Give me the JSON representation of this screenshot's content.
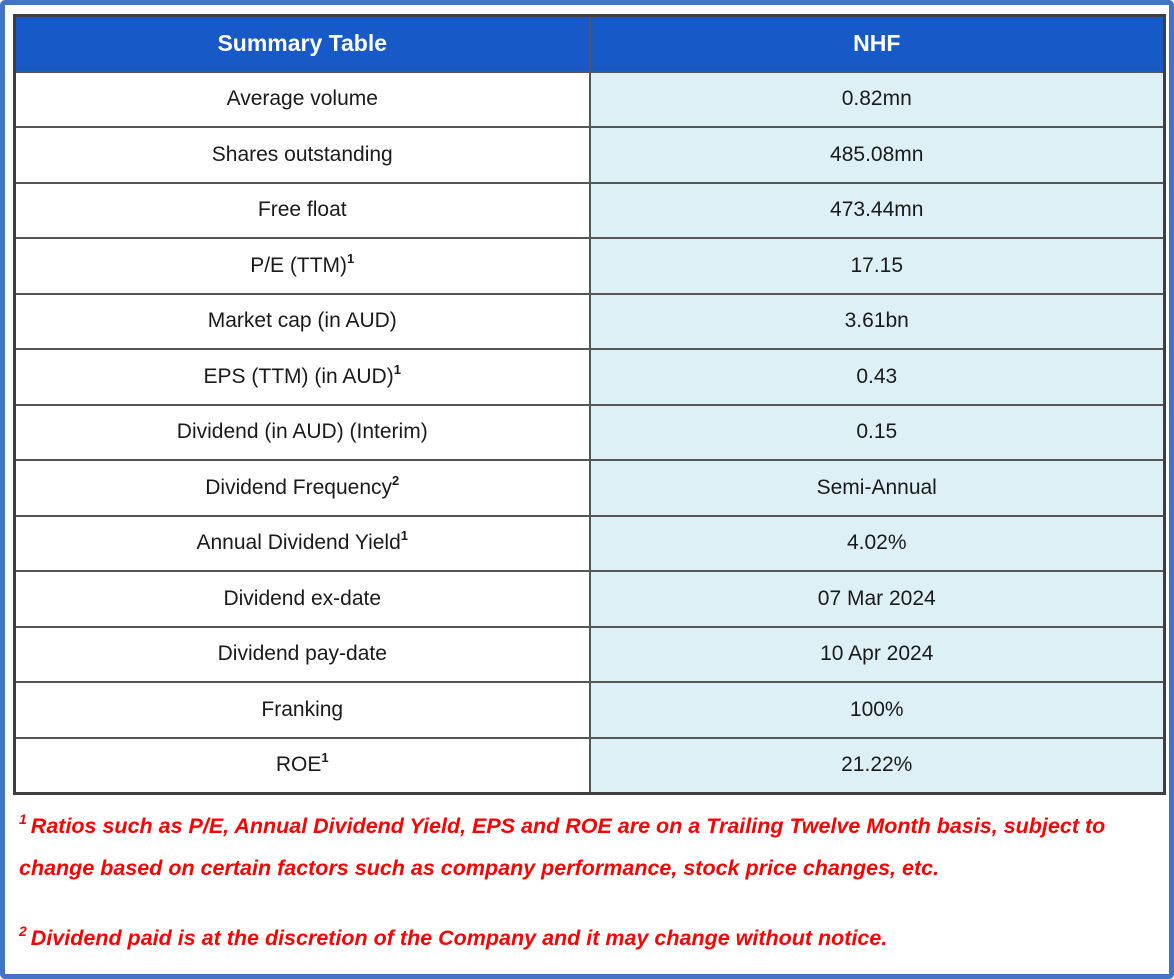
{
  "table": {
    "header": {
      "col1": "Summary Table",
      "col2": "NHF"
    },
    "rows": [
      {
        "label": "Average volume",
        "sup": "",
        "value": "0.82mn"
      },
      {
        "label": "Shares outstanding",
        "sup": "",
        "value": "485.08mn"
      },
      {
        "label": "Free float",
        "sup": "",
        "value": "473.44mn"
      },
      {
        "label": "P/E (TTM)",
        "sup": "1",
        "value": "17.15"
      },
      {
        "label": "Market cap (in AUD)",
        "sup": "",
        "value": "3.61bn"
      },
      {
        "label": "EPS (TTM) (in AUD)",
        "sup": "1",
        "value": "0.43"
      },
      {
        "label": "Dividend (in AUD) (Interim)",
        "sup": "",
        "value": "0.15"
      },
      {
        "label": "Dividend Frequency",
        "sup": "2",
        "value": "Semi-Annual"
      },
      {
        "label": "Annual Dividend Yield",
        "sup": "1",
        "value": "4.02%"
      },
      {
        "label": "Dividend ex-date",
        "sup": "",
        "value": "07 Mar 2024"
      },
      {
        "label": "Dividend pay-date",
        "sup": "",
        "value": "10 Apr 2024"
      },
      {
        "label": "Franking",
        "sup": "",
        "value": "100%"
      },
      {
        "label": "ROE",
        "sup": "1",
        "value": "21.22%"
      }
    ]
  },
  "footnotes": [
    {
      "sup": "1",
      "text": "Ratios such as P/E, Annual Dividend Yield, EPS and ROE are on a Trailing Twelve Month basis, subject to change based on certain factors such as company performance, stock price changes, etc."
    },
    {
      "sup": "2",
      "text": "Dividend paid is at the discretion of the Company and it may change without notice."
    }
  ],
  "colors": {
    "header_bg": "#1659C7",
    "header_fg": "#FFFFFF",
    "value_bg": "#DCF0F6",
    "label_bg": "#FFFFFF",
    "frame_border": "#4472C4",
    "grid_line": "#555555",
    "grid_outer": "#3F3F3F",
    "cell_fg": "#1A1A1A",
    "footnote_fg": "#FF0000"
  }
}
